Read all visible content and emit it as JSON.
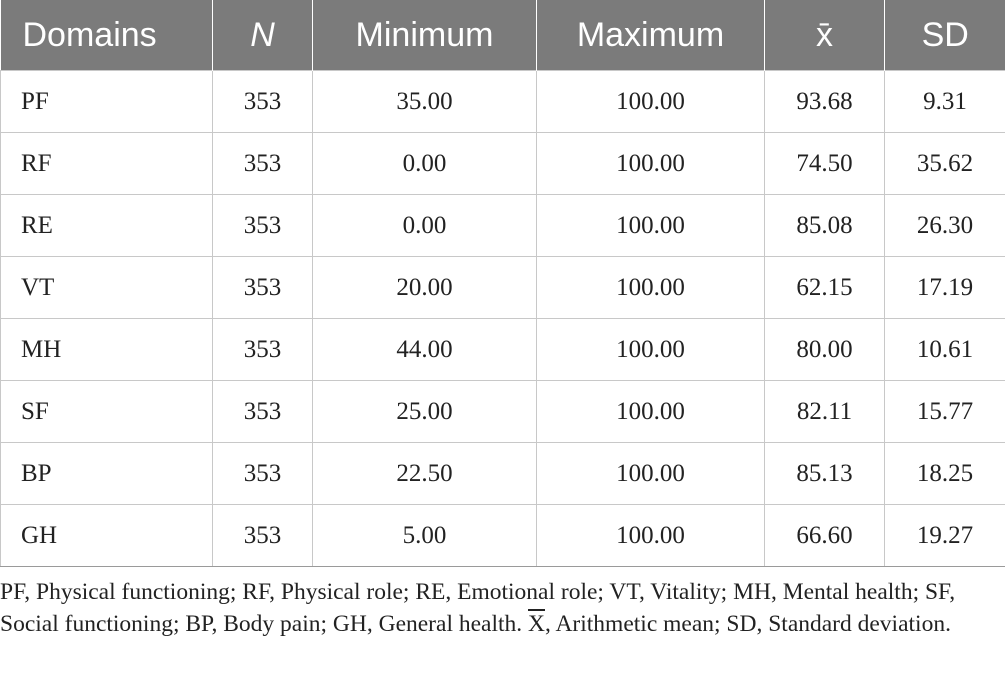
{
  "table": {
    "headers": [
      "Domains",
      "N",
      "Minimum",
      "Maximum",
      "x̄",
      "SD"
    ],
    "rows": [
      [
        "PF",
        "353",
        "35.00",
        "100.00",
        "93.68",
        "9.31"
      ],
      [
        "RF",
        "353",
        "0.00",
        "100.00",
        "74.50",
        "35.62"
      ],
      [
        "RE",
        "353",
        "0.00",
        "100.00",
        "85.08",
        "26.30"
      ],
      [
        "VT",
        "353",
        "20.00",
        "100.00",
        "62.15",
        "17.19"
      ],
      [
        "MH",
        "353",
        "44.00",
        "100.00",
        "80.00",
        "10.61"
      ],
      [
        "SF",
        "353",
        "25.00",
        "100.00",
        "82.11",
        "15.77"
      ],
      [
        "BP",
        "353",
        "22.50",
        "100.00",
        "85.13",
        "18.25"
      ],
      [
        "GH",
        "353",
        "5.00",
        "100.00",
        "66.60",
        "19.27"
      ]
    ]
  },
  "footnote": {
    "part1": "PF, Physical functioning; RF, Physical role; RE, Emotional role; VT, Vitality; MH, Mental health; SF, Social functioning; BP, Body pain; GH, General health. ",
    "xbar": "X",
    "part2": ", Arithmetic mean; SD, Standard deviation."
  },
  "colors": {
    "header_bg": "#7b7b7b",
    "header_text": "#ffffff",
    "grid": "#c8c8c8"
  }
}
